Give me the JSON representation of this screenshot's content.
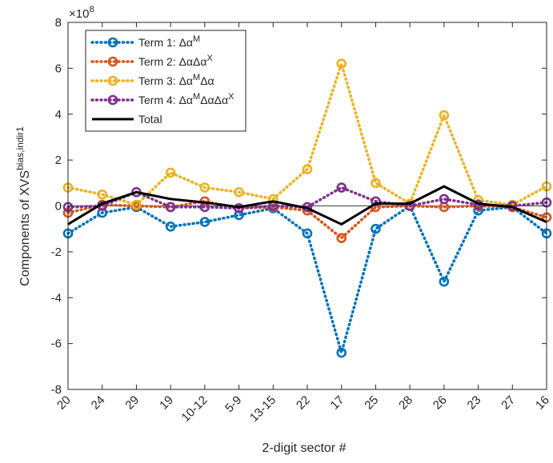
{
  "chart_data": {
    "type": "line",
    "xlabel": "2-digit sector #",
    "ylabel": "Components of XVS",
    "ylabel_sup": "bias,indir1",
    "exponent_label": "×10",
    "exponent_power": "8",
    "categories": [
      "20",
      "24",
      "29",
      "19",
      "10-12",
      "5-9",
      "13-15",
      "22",
      "17",
      "25",
      "28",
      "26",
      "23",
      "27",
      "16"
    ],
    "ylim": [
      -8,
      8
    ],
    "yticks": [
      -8,
      -6,
      -4,
      -2,
      0,
      2,
      4,
      6,
      8
    ],
    "ytick_labels": [
      "-8",
      "-6",
      "-4",
      "-2",
      "0",
      "2",
      "4",
      "6",
      "8"
    ],
    "grid": false,
    "zero_line": true,
    "legend_position": "top-left",
    "series": [
      {
        "name": "Term 1:",
        "legend_parts": [
          "Term 1: ",
          {
            "t": "Δα"
          },
          {
            "sup": "M"
          }
        ],
        "color": "#0072BD",
        "style": "dotted",
        "marker": "circle",
        "values": [
          -1.2,
          -0.3,
          -0.05,
          -0.9,
          -0.7,
          -0.4,
          -0.1,
          -1.2,
          -6.4,
          -1.0,
          0.0,
          -3.3,
          -0.2,
          -0.05,
          -1.2
        ]
      },
      {
        "name": "Term 2:",
        "legend_parts": [
          "Term 2: ",
          {
            "t": "ΔαΔα"
          },
          {
            "sup": "X"
          }
        ],
        "color": "#D95319",
        "style": "dotted",
        "marker": "circle",
        "values": [
          -0.3,
          0.05,
          0.0,
          -0.05,
          0.2,
          -0.1,
          -0.05,
          -0.2,
          -1.4,
          -0.05,
          0.0,
          -0.05,
          0.0,
          -0.05,
          -0.5
        ]
      },
      {
        "name": "Term 3:",
        "legend_parts": [
          "Term 3: ",
          {
            "t": "Δα"
          },
          {
            "sup": "M"
          },
          {
            "t": "Δα"
          }
        ],
        "color": "#EDB120",
        "style": "dotted",
        "marker": "circle",
        "values": [
          0.8,
          0.5,
          0.05,
          1.45,
          0.8,
          0.6,
          0.3,
          1.6,
          6.2,
          1.0,
          0.1,
          3.95,
          0.25,
          0.05,
          0.85
        ]
      },
      {
        "name": "Term 4:",
        "legend_parts": [
          "Term 4: ",
          {
            "t": "Δα"
          },
          {
            "sup": "M"
          },
          {
            "t": "ΔαΔα"
          },
          {
            "sup": "X"
          }
        ],
        "color": "#7E2F8E",
        "style": "dotted",
        "marker": "circle",
        "values": [
          -0.05,
          0.0,
          0.6,
          -0.05,
          -0.05,
          -0.1,
          0.0,
          -0.05,
          0.8,
          0.2,
          0.0,
          0.3,
          0.05,
          0.0,
          0.15
        ]
      },
      {
        "name": "Total",
        "legend_parts": [
          "Total"
        ],
        "color": "#000000",
        "style": "solid",
        "marker": "none",
        "values": [
          -0.8,
          0.1,
          0.6,
          0.3,
          0.15,
          -0.05,
          0.2,
          -0.1,
          -0.8,
          0.1,
          0.1,
          0.85,
          0.1,
          -0.05,
          -0.7
        ]
      }
    ]
  }
}
